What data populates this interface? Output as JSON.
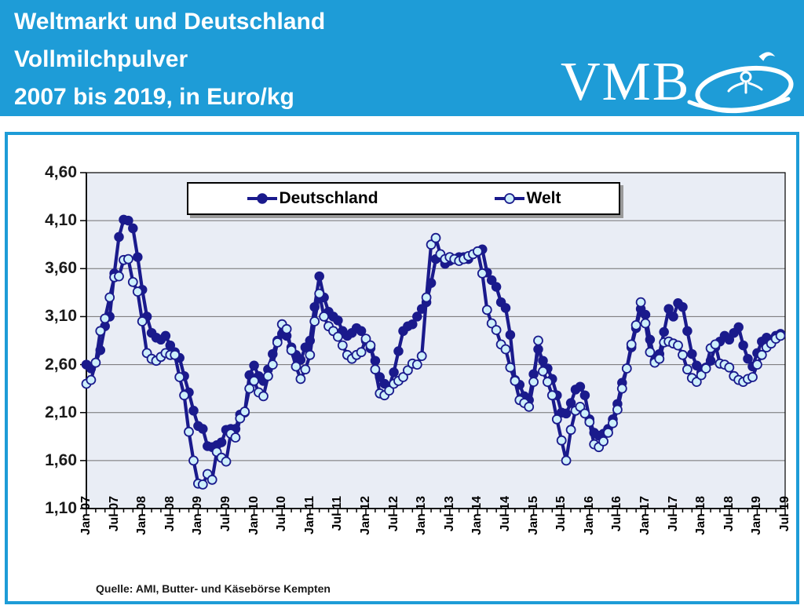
{
  "header": {
    "title_line1": "Weltmarkt und Deutschland",
    "title_line2": "Vollmilchpulver",
    "title_line3": "2007 bis 2019, in Euro/kg",
    "logo_text": "VMB"
  },
  "source_note": "Quelle: AMI, Butter- und Käsebörse Kempten",
  "colors": {
    "header_bg": "#1E9CD7",
    "frame_border": "#1E9CD7",
    "series_navy": "#1A1A8C",
    "welt_marker_fill": "#CDEFFB",
    "plot_bg": "#E9EDF5",
    "gridline": "#707070",
    "axis": "#000000",
    "legend_shadow": "#9a9a9a"
  },
  "chart_data": {
    "type": "line",
    "title": "Weltmarkt und Deutschland Vollmilchpulver 2007 bis 2019, in Euro/kg",
    "ylabel": "Euro/kg",
    "ylim": [
      1.1,
      4.6
    ],
    "grid": true,
    "legend_position": "top",
    "x_start": "Jan 2007",
    "x_frequency": "monthly",
    "y_tick_values": [
      1.1,
      1.6,
      2.1,
      2.6,
      3.1,
      3.6,
      4.1,
      4.6
    ],
    "y_tick_labels": [
      "1,10",
      "1,60",
      "2,10",
      "2,60",
      "3,10",
      "3,60",
      "4,10",
      "4,60"
    ],
    "x_tick_labels": [
      "Jan 07",
      "Jul 07",
      "Jan 08",
      "Jul 08",
      "Jan 09",
      "Jul 09",
      "Jan 10",
      "Jul 10",
      "Jan 11",
      "Jul 11",
      "Jan 12",
      "Jul 12",
      "Jan 13",
      "Jul 13",
      "Jan 14",
      "Jul 14",
      "Jan 15",
      "Jul 15",
      "Jan 16",
      "Jul 16",
      "Jan 17",
      "Jul 17",
      "Jan 18",
      "Jul 18",
      "Jan 19",
      "Jul 19"
    ],
    "series": [
      {
        "name": "Deutschland",
        "marker": "filled-circle",
        "values": [
          2.6,
          2.56,
          2.62,
          2.75,
          3.0,
          3.1,
          3.55,
          3.93,
          4.11,
          4.1,
          4.02,
          3.72,
          3.38,
          3.1,
          2.93,
          2.88,
          2.86,
          2.9,
          2.8,
          2.73,
          2.67,
          2.48,
          2.31,
          2.12,
          1.96,
          1.93,
          1.75,
          1.74,
          1.76,
          1.79,
          1.92,
          1.93,
          1.93,
          2.08,
          2.1,
          2.49,
          2.59,
          2.48,
          2.43,
          2.55,
          2.71,
          2.85,
          2.92,
          2.9,
          2.78,
          2.7,
          2.65,
          2.78,
          2.85,
          3.2,
          3.52,
          3.3,
          3.15,
          3.1,
          3.06,
          2.95,
          2.9,
          2.93,
          2.98,
          2.95,
          2.85,
          2.77,
          2.64,
          2.47,
          2.4,
          2.37,
          2.52,
          2.74,
          2.95,
          3.0,
          3.02,
          3.1,
          3.18,
          3.25,
          3.45,
          3.7,
          3.72,
          3.65,
          3.68,
          3.7,
          3.72,
          3.72,
          3.7,
          3.75,
          3.78,
          3.8,
          3.56,
          3.48,
          3.41,
          3.25,
          3.19,
          2.91,
          2.44,
          2.39,
          2.27,
          2.23,
          2.5,
          2.76,
          2.64,
          2.56,
          2.45,
          2.28,
          2.1,
          2.09,
          2.2,
          2.34,
          2.37,
          2.28,
          2.03,
          1.89,
          1.86,
          1.88,
          1.93,
          2.03,
          2.19,
          2.41,
          2.56,
          2.78,
          2.98,
          3.18,
          3.12,
          2.86,
          2.64,
          2.71,
          2.94,
          3.18,
          3.1,
          3.24,
          3.2,
          2.95,
          2.71,
          2.59,
          2.52,
          2.57,
          2.64,
          2.78,
          2.84,
          2.9,
          2.86,
          2.93,
          2.99,
          2.8,
          2.66,
          2.58,
          2.72,
          2.84,
          2.88,
          2.86,
          2.9,
          2.92
        ]
      },
      {
        "name": "Welt",
        "marker": "open-circle",
        "values": [
          2.4,
          2.44,
          2.62,
          2.95,
          3.08,
          3.3,
          3.51,
          3.52,
          3.69,
          3.7,
          3.46,
          3.36,
          3.05,
          2.72,
          2.66,
          2.64,
          2.68,
          2.72,
          2.7,
          2.7,
          2.47,
          2.28,
          1.9,
          1.6,
          1.36,
          1.35,
          1.46,
          1.4,
          1.69,
          1.63,
          1.59,
          1.88,
          1.84,
          2.04,
          2.11,
          2.35,
          2.43,
          2.31,
          2.27,
          2.48,
          2.6,
          2.83,
          3.02,
          2.97,
          2.75,
          2.58,
          2.45,
          2.55,
          2.7,
          3.05,
          3.34,
          3.1,
          3.0,
          2.95,
          2.89,
          2.8,
          2.7,
          2.66,
          2.7,
          2.73,
          2.87,
          2.8,
          2.55,
          2.3,
          2.28,
          2.33,
          2.4,
          2.43,
          2.47,
          2.54,
          2.61,
          2.6,
          2.69,
          3.3,
          3.85,
          3.92,
          3.75,
          3.7,
          3.72,
          3.7,
          3.68,
          3.7,
          3.73,
          3.75,
          3.78,
          3.55,
          3.17,
          3.03,
          2.96,
          2.81,
          2.76,
          2.57,
          2.43,
          2.23,
          2.2,
          2.16,
          2.42,
          2.85,
          2.53,
          2.42,
          2.28,
          2.03,
          1.81,
          1.6,
          1.92,
          2.12,
          2.16,
          2.09,
          2.0,
          1.77,
          1.74,
          1.8,
          1.89,
          1.99,
          2.13,
          2.35,
          2.56,
          2.81,
          3.01,
          3.25,
          3.03,
          2.73,
          2.62,
          2.66,
          2.83,
          2.84,
          2.82,
          2.8,
          2.7,
          2.55,
          2.46,
          2.42,
          2.49,
          2.56,
          2.77,
          2.81,
          2.61,
          2.6,
          2.57,
          2.48,
          2.44,
          2.42,
          2.45,
          2.47,
          2.6,
          2.7,
          2.78,
          2.82,
          2.87,
          2.9
        ]
      }
    ]
  }
}
